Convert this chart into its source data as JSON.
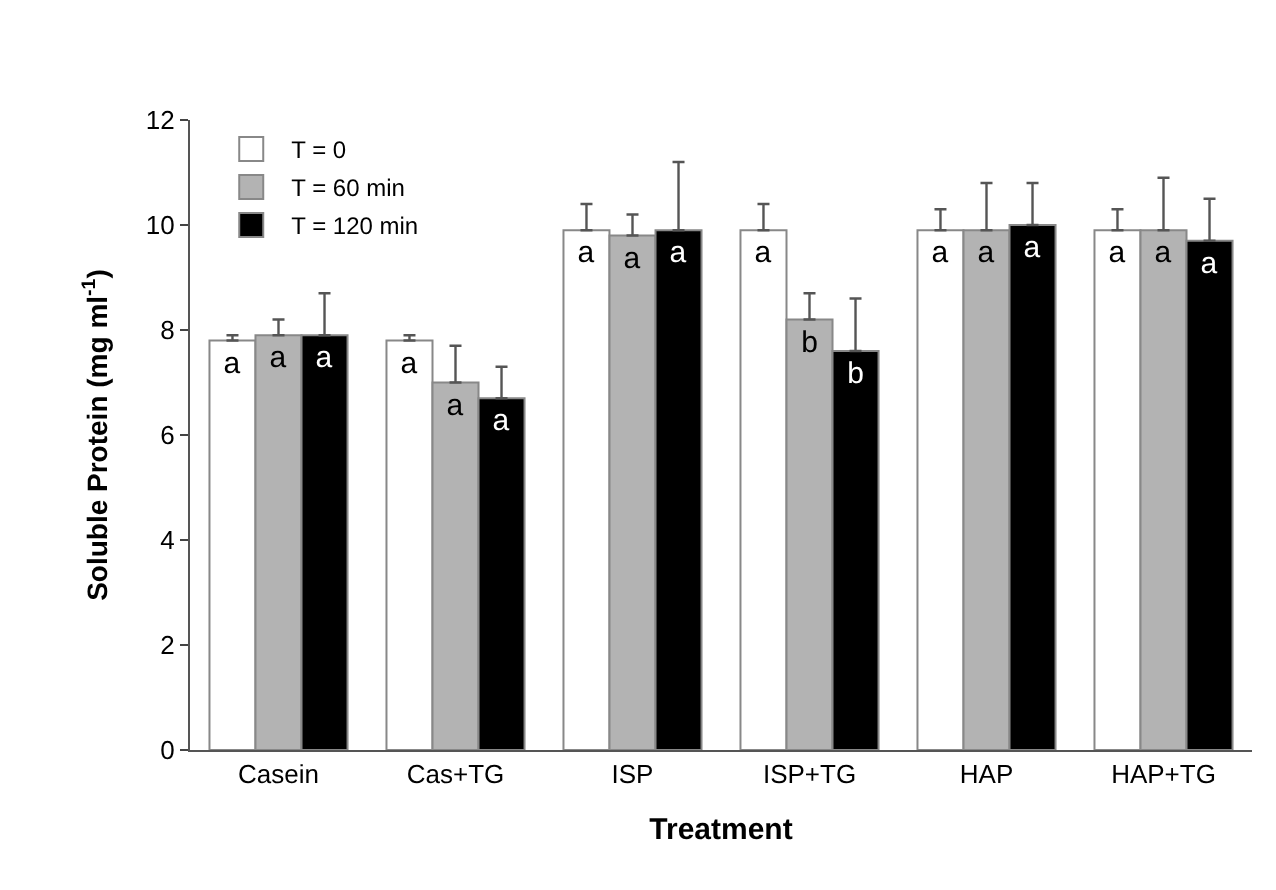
{
  "chart_data": {
    "type": "bar",
    "xlabel": "Treatment",
    "ylabel": "Soluble Protein (mg ml$^{-1}$)",
    "categories": [
      "Casein",
      "Cas+TG",
      "ISP",
      "ISP+TG",
      "HAP",
      "HAP+TG"
    ],
    "series": [
      {
        "name": "T = 0",
        "color": "#ffffff",
        "values": [
          7.8,
          7.8,
          9.9,
          9.9,
          9.9,
          9.9
        ],
        "errors": [
          [
            7.8,
            7.9
          ],
          [
            7.8,
            7.9
          ],
          [
            9.9,
            10.4
          ],
          [
            9.9,
            10.4
          ],
          [
            9.9,
            10.3
          ],
          [
            9.9,
            10.3
          ]
        ],
        "value_labels": [
          "a",
          "a",
          "a",
          "a",
          "a",
          "a"
        ]
      },
      {
        "name": "T = 60 min",
        "color": "#b3b3b3",
        "values": [
          7.9,
          7.0,
          9.8,
          8.2,
          9.9,
          9.9
        ],
        "errors": [
          [
            7.9,
            8.2
          ],
          [
            7.0,
            7.7
          ],
          [
            9.8,
            10.2
          ],
          [
            8.2,
            8.7
          ],
          [
            9.9,
            10.8
          ],
          [
            9.9,
            10.9
          ]
        ],
        "value_labels": [
          "a",
          "a",
          "a",
          "b",
          "a",
          "a"
        ]
      },
      {
        "name": "T = 120 min",
        "color": "#000000",
        "values": [
          7.9,
          6.7,
          9.9,
          7.6,
          10.0,
          9.7
        ],
        "errors": [
          [
            7.9,
            8.7
          ],
          [
            6.7,
            7.3
          ],
          [
            9.9,
            11.2
          ],
          [
            7.6,
            8.6
          ],
          [
            10.0,
            10.8
          ],
          [
            9.7,
            10.5
          ]
        ],
        "value_labels": [
          "a",
          "a",
          "a",
          "b",
          "a",
          "a"
        ]
      }
    ],
    "ylim": [
      0,
      12
    ],
    "yticks": [
      0,
      2,
      4,
      6,
      8,
      10,
      12
    ],
    "legend": "top left"
  }
}
